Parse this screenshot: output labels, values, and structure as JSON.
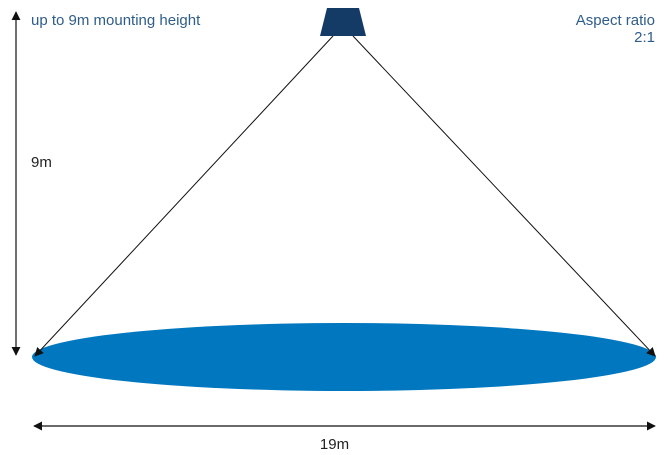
{
  "header": {
    "mounting_text": "up to 9m mounting height",
    "aspect_line1": "Aspect ratio",
    "aspect_line2": "2:1"
  },
  "dimensions": {
    "height_label": "9m",
    "width_label": "19m"
  },
  "colors": {
    "fixture": "#143a66",
    "coverage_area": "#0077bf",
    "header_text": "#2f5d8a",
    "dimension_text": "#222222",
    "lines": "#111111"
  }
}
